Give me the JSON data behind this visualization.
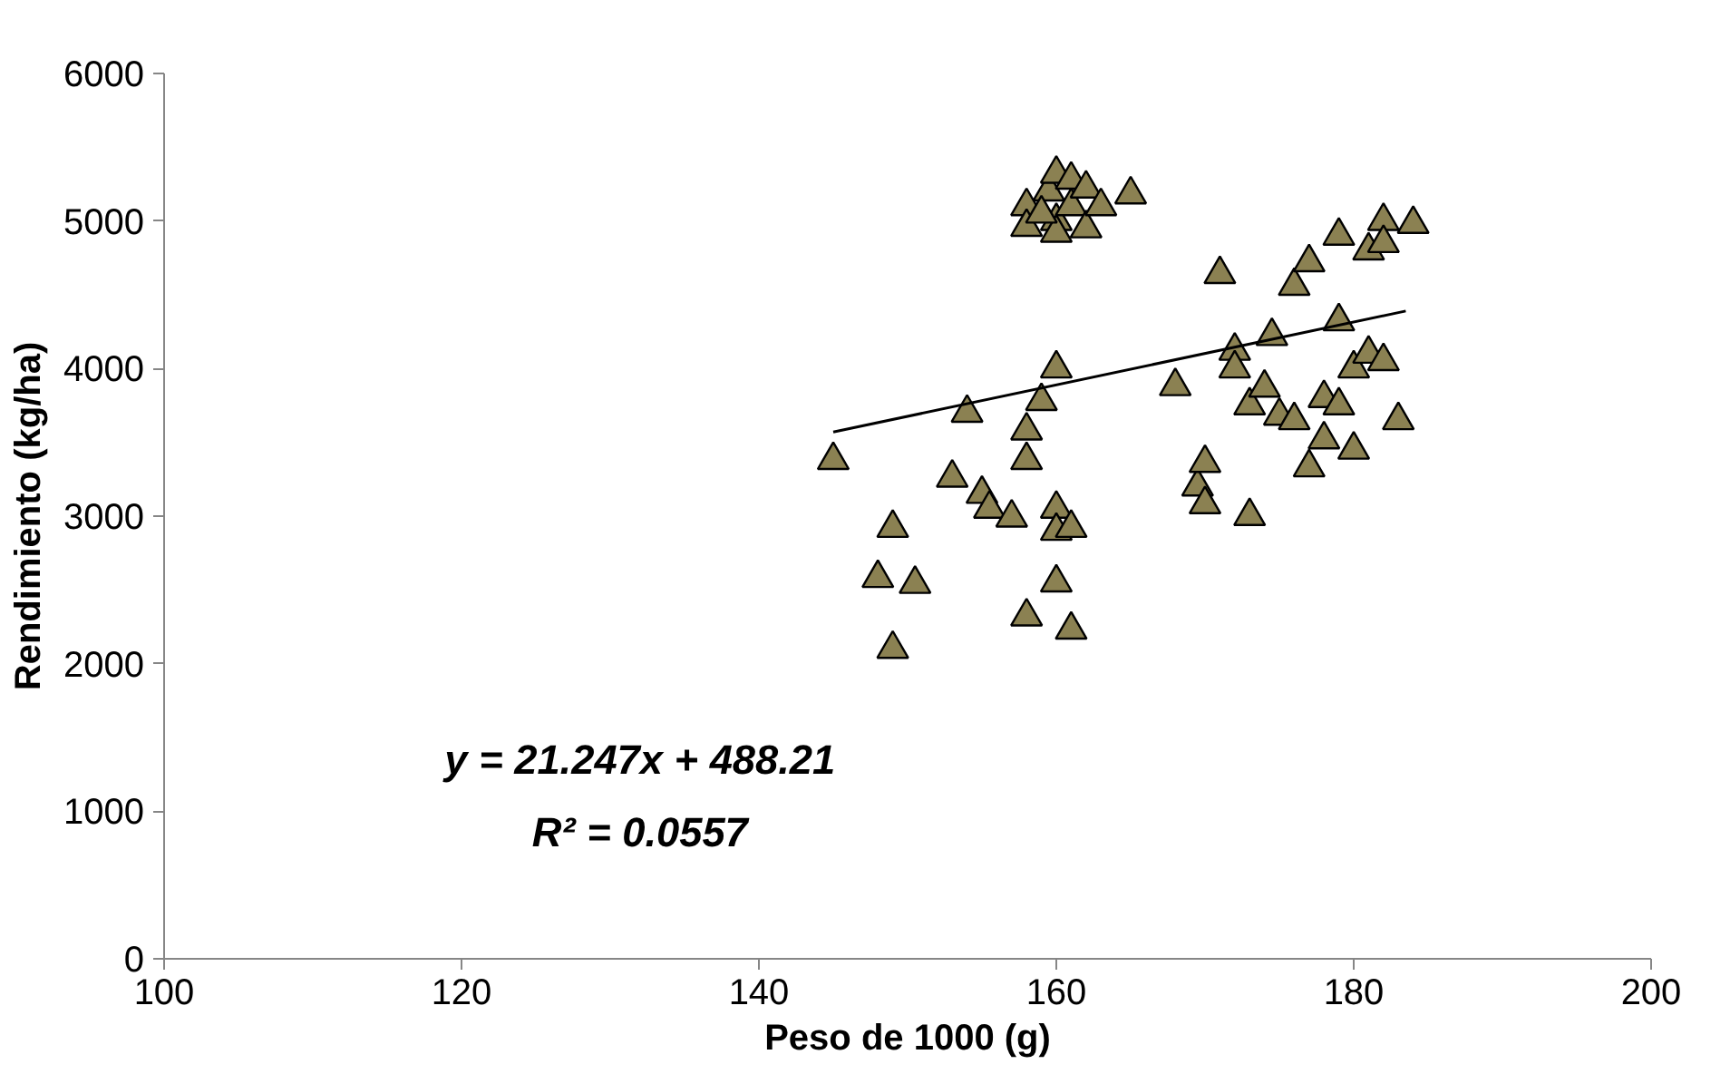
{
  "chart_data": {
    "type": "scatter",
    "xlabel": "Peso de 1000 (g)",
    "ylabel": "Rendimiento (kg/ha)",
    "xlim": [
      100,
      200
    ],
    "xticks": [
      100,
      120,
      140,
      160,
      180,
      200
    ],
    "ylim": [
      0,
      6000
    ],
    "yticks": [
      0,
      1000,
      2000,
      3000,
      4000,
      5000,
      6000
    ],
    "grid": false,
    "marker": "triangle",
    "annotations": [
      "y = 21.247x + 488.21",
      "R² = 0.0557"
    ],
    "series": [
      {
        "color": "#8b8152",
        "x": [
          145,
          148,
          149,
          149,
          150.5,
          153,
          154,
          155,
          155.5,
          157,
          158,
          158,
          158,
          159,
          160,
          160,
          160,
          160,
          161,
          161,
          158,
          158,
          159.5,
          160,
          160,
          160,
          161,
          161,
          162,
          162,
          163,
          165,
          159,
          168,
          169.5,
          170,
          170,
          171,
          172,
          172,
          173,
          173,
          174,
          174.5,
          175,
          176,
          176,
          177,
          177,
          178,
          178,
          179,
          179,
          179,
          180,
          180,
          181,
          181,
          182,
          182,
          182,
          183,
          184
        ],
        "values": [
          3380,
          2580,
          2920,
          2100,
          2540,
          3260,
          3700,
          3150,
          3050,
          2990,
          3580,
          3380,
          2320,
          3780,
          4000,
          3050,
          2900,
          2550,
          2920,
          2230,
          5100,
          4960,
          5200,
          5320,
          5000,
          4920,
          5280,
          5100,
          5220,
          4950,
          5100,
          5180,
          5050,
          3880,
          3200,
          3360,
          3080,
          4640,
          4120,
          4000,
          3750,
          3000,
          3870,
          4220,
          3680,
          3650,
          4560,
          4720,
          3330,
          3520,
          3800,
          4900,
          4320,
          3750,
          4000,
          3450,
          4100,
          4800,
          4050,
          5000,
          4850,
          3650,
          4980
        ]
      },
      {
        "type": "line",
        "color": "#000000",
        "x": [
          145,
          183.5
        ],
        "values": [
          3570,
          4390
        ],
        "line_style": "solid",
        "marker": "none"
      }
    ]
  }
}
